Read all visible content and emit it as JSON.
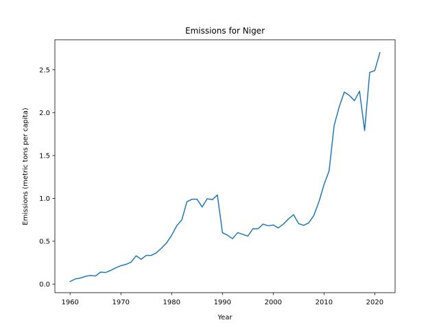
{
  "chart_data": {
    "type": "line",
    "title": "Emissions for Niger",
    "xlabel": "Year",
    "ylabel": "Emissions (metric tons per capita)",
    "xlim": [
      1957,
      2024
    ],
    "ylim": [
      -0.1,
      2.85
    ],
    "xticks": [
      1960,
      1970,
      1980,
      1990,
      2000,
      2010,
      2020
    ],
    "yticks": [
      0.0,
      0.5,
      1.0,
      1.5,
      2.0,
      2.5
    ],
    "ytick_labels": [
      "0.0",
      "0.5",
      "1.0",
      "1.5",
      "2.0",
      "2.5"
    ],
    "grid": false,
    "line_color": "#1f77b4",
    "series": [
      {
        "x": [
          1960,
          1961,
          1962,
          1963,
          1964,
          1965,
          1966,
          1967,
          1968,
          1969,
          1970,
          1971,
          1972,
          1973,
          1974,
          1975,
          1976,
          1977,
          1978,
          1979,
          1980,
          1981,
          1982,
          1983,
          1984,
          1985,
          1986,
          1987,
          1988,
          1989,
          1990,
          1991,
          1992,
          1993,
          1994,
          1995,
          1996,
          1997,
          1998,
          1999,
          2000,
          2001,
          2002,
          2003,
          2004,
          2005,
          2006,
          2007,
          2008,
          2009,
          2010,
          2011,
          2012,
          2013,
          2014,
          2015,
          2016,
          2017,
          2018,
          2019,
          2020,
          2021
        ],
        "values": [
          0.03,
          0.06,
          0.07,
          0.09,
          0.1,
          0.095,
          0.14,
          0.135,
          0.16,
          0.19,
          0.215,
          0.23,
          0.255,
          0.33,
          0.29,
          0.335,
          0.335,
          0.365,
          0.42,
          0.48,
          0.57,
          0.68,
          0.75,
          0.96,
          0.99,
          0.99,
          0.9,
          0.995,
          0.985,
          1.04,
          0.6,
          0.57,
          0.53,
          0.6,
          0.58,
          0.56,
          0.645,
          0.645,
          0.7,
          0.68,
          0.69,
          0.655,
          0.7,
          0.76,
          0.81,
          0.705,
          0.685,
          0.715,
          0.8,
          0.96,
          1.16,
          1.32,
          1.85,
          2.07,
          2.24,
          2.2,
          2.14,
          2.25,
          1.79,
          2.47,
          2.49,
          2.7
        ]
      }
    ]
  }
}
